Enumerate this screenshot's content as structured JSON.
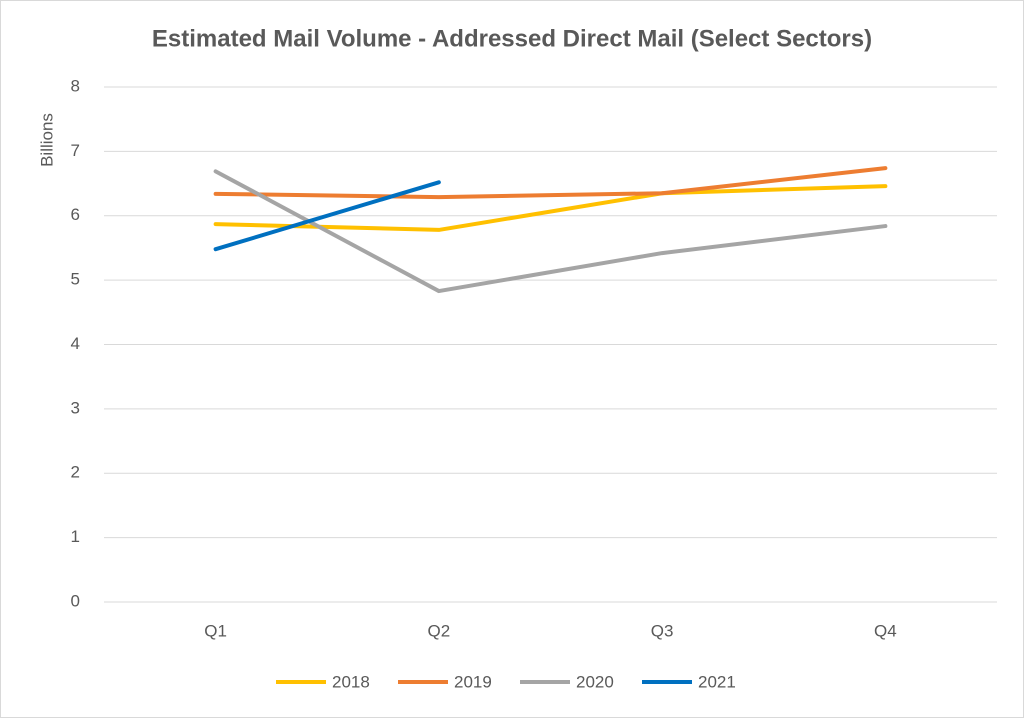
{
  "chart_data": {
    "type": "line",
    "title": "Estimated Mail Volume - Addressed Direct Mail (Select Sectors)",
    "y_label": "Billions",
    "categories": [
      "Q1",
      "Q2",
      "Q3",
      "Q4"
    ],
    "series": [
      {
        "name": "2018",
        "color": "#ffc000",
        "values": [
          5.87,
          5.78,
          6.35,
          6.46
        ]
      },
      {
        "name": "2019",
        "color": "#ed7d31",
        "values": [
          6.34,
          6.29,
          6.35,
          6.74
        ]
      },
      {
        "name": "2020",
        "color": "#a5a5a5",
        "values": [
          6.69,
          4.83,
          5.42,
          5.84
        ]
      },
      {
        "name": "2021",
        "color": "#0070c0",
        "values": [
          5.48,
          6.52,
          null,
          null
        ]
      }
    ],
    "ylim": [
      0,
      8
    ],
    "yticks": [
      0,
      1,
      2,
      3,
      4,
      5,
      6,
      7,
      8
    ],
    "grid": true,
    "legend": "bottom"
  }
}
